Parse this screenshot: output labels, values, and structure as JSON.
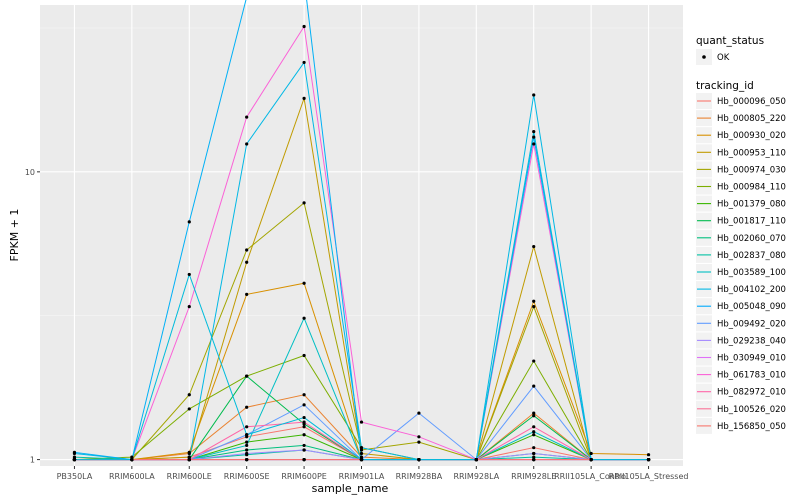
{
  "chart_data": {
    "type": "line",
    "xlabel": "sample_name",
    "ylabel": "FPKM + 1",
    "y_scale": "log",
    "ylim": [
      0.95,
      38
    ],
    "y_ticks": [
      1,
      10
    ],
    "y_tick_labels": [
      "1",
      "10"
    ],
    "grid": true,
    "legend_position": "right",
    "x": [
      "PB350LA",
      "RRIM600LA",
      "RRIM600LE",
      "RRIM600SE",
      "RRIM600PE",
      "RRIM901LA",
      "RRIM928BA",
      "RRIM928LA",
      "RRIM928LE",
      "RRII105LA_Control",
      "RRII105LA_Stressed"
    ],
    "shape_legend": {
      "title": "quant_status",
      "entries": [
        "OK"
      ]
    },
    "color_legend_title": "tracking_id",
    "series": [
      {
        "name": "Hb_000096_050",
        "color": "#F8766D",
        "values": [
          1.0,
          1.0,
          1.02,
          1.2,
          1.3,
          1.0,
          1.0,
          1.0,
          1.1,
          1.0,
          1.0
        ]
      },
      {
        "name": "Hb_000805_220",
        "color": "#EA8331",
        "values": [
          1.0,
          1.0,
          1.05,
          1.52,
          1.68,
          1.02,
          1.0,
          1.0,
          1.45,
          1.0,
          1.0
        ]
      },
      {
        "name": "Hb_000930_020",
        "color": "#D89000",
        "values": [
          1.0,
          1.0,
          1.06,
          3.75,
          4.1,
          1.0,
          1.0,
          1.0,
          3.55,
          1.05,
          1.04
        ]
      },
      {
        "name": "Hb_000953_110",
        "color": "#C09B00",
        "values": [
          1.0,
          1.0,
          1.02,
          4.85,
          18.0,
          1.05,
          1.0,
          1.0,
          5.5,
          1.0,
          1.0
        ]
      },
      {
        "name": "Hb_000974_030",
        "color": "#A3A500",
        "values": [
          1.0,
          1.0,
          1.68,
          5.35,
          7.8,
          1.08,
          1.15,
          1.0,
          3.4,
          1.0,
          1.0
        ]
      },
      {
        "name": "Hb_000984_110",
        "color": "#7CAE00",
        "values": [
          1.0,
          1.02,
          1.5,
          1.95,
          2.3,
          1.1,
          1.0,
          1.0,
          2.2,
          1.0,
          1.0
        ]
      },
      {
        "name": "Hb_001379_080",
        "color": "#39B600",
        "values": [
          1.0,
          1.0,
          1.0,
          1.15,
          1.22,
          1.0,
          1.0,
          1.0,
          1.22,
          1.0,
          1.0
        ]
      },
      {
        "name": "Hb_001817_110",
        "color": "#00BB4E",
        "values": [
          1.0,
          1.0,
          1.0,
          1.95,
          1.33,
          1.0,
          1.0,
          1.0,
          1.42,
          1.0,
          1.0
        ]
      },
      {
        "name": "Hb_002060_070",
        "color": "#00BF7D",
        "values": [
          1.0,
          1.0,
          1.0,
          1.08,
          1.12,
          1.0,
          1.0,
          1.0,
          1.05,
          1.0,
          1.0
        ]
      },
      {
        "name": "Hb_002837_080",
        "color": "#00C1A3",
        "values": [
          1.02,
          1.0,
          1.0,
          1.04,
          1.08,
          1.0,
          1.0,
          1.0,
          1.02,
          1.0,
          1.0
        ]
      },
      {
        "name": "Hb_003589_100",
        "color": "#00BFC4",
        "values": [
          1.0,
          1.0,
          1.0,
          1.12,
          3.1,
          1.0,
          1.0,
          1.0,
          1.25,
          1.0,
          1.0
        ]
      },
      {
        "name": "Hb_004102_200",
        "color": "#00B8E5",
        "values": [
          1.05,
          1.0,
          1.0,
          12.5,
          24.0,
          1.1,
          1.0,
          1.0,
          18.5,
          1.0,
          1.0
        ]
      },
      {
        "name": "Hb_005048_090",
        "color": "#00ABFD",
        "values": [
          1.0,
          1.0,
          1.0,
          1.0,
          1.0,
          1.0,
          1.0,
          1.0,
          1.0,
          1.0,
          1.0
        ]
      },
      {
        "name": "Hb_009492_020",
        "color": "#619CFF",
        "values": [
          1.0,
          1.0,
          1.0,
          1.22,
          1.55,
          1.0,
          1.45,
          1.0,
          1.8,
          1.0,
          1.0
        ]
      },
      {
        "name": "Hb_029238_040",
        "color": "#A58AFF",
        "values": [
          1.0,
          1.0,
          1.0,
          1.05,
          1.08,
          1.0,
          1.0,
          1.0,
          1.05,
          1.0,
          1.0
        ]
      },
      {
        "name": "Hb_030949_010",
        "color": "#DF70F8",
        "values": [
          1.0,
          1.0,
          1.0,
          1.0,
          1.0,
          1.0,
          1.0,
          1.0,
          1.0,
          1.0,
          1.0
        ]
      },
      {
        "name": "Hb_061783_010",
        "color": "#FB61D7",
        "values": [
          1.0,
          1.0,
          3.4,
          15.5,
          32.0,
          1.35,
          1.2,
          1.0,
          12.5,
          1.0,
          1.0
        ]
      },
      {
        "name": "Hb_082972_010",
        "color": "#FF66A8",
        "values": [
          1.0,
          1.0,
          1.0,
          1.3,
          1.35,
          1.0,
          1.0,
          1.0,
          1.3,
          1.0,
          1.0
        ]
      },
      {
        "name": "Hb_100526_020",
        "color": "#FA7398",
        "values": [
          1.0,
          1.0,
          1.0,
          1.0,
          1.0,
          1.0,
          1.0,
          1.0,
          1.0,
          1.0,
          1.0
        ]
      },
      {
        "name": "Hb_156850_050",
        "color": "#F8766D",
        "values": [
          1.0,
          1.0,
          1.0,
          1.0,
          1.0,
          1.0,
          1.0,
          1.0,
          1.0,
          1.0,
          1.0
        ]
      }
    ],
    "extra_series": [
      {
        "color": "#00B0F6",
        "values": [
          1.06,
          1.0,
          6.7,
          40.5,
          47.0,
          1.0,
          1.0,
          1.0,
          13.2,
          1.0,
          1.0
        ]
      },
      {
        "color": "#00BBDB",
        "values": [
          1.0,
          1.0,
          4.4,
          1.22,
          1.4,
          1.0,
          1.0,
          1.0,
          13.8,
          1.0,
          1.0
        ]
      }
    ]
  }
}
